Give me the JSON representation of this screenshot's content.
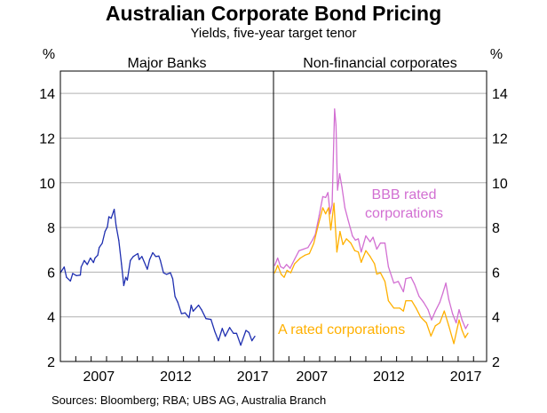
{
  "chart_data": [
    {
      "type": "line",
      "title": "Australian Corporate Bond Pricing",
      "subtitle": "Yields, five-year target tenor",
      "panel_label": "Major Banks",
      "ylabel": "%",
      "ylim": [
        2,
        15
      ],
      "yticks": [
        2,
        4,
        6,
        8,
        10,
        12,
        14
      ],
      "xlim": [
        2005,
        2018.85
      ],
      "xtick_labels": [
        "2007",
        "2012",
        "2017"
      ],
      "grid": true,
      "series": [
        {
          "name": "",
          "color": "#1f2fb0",
          "x": [
            2005.0,
            2005.25,
            2005.4,
            2005.65,
            2005.8,
            2006.05,
            2006.3,
            2006.35,
            2006.55,
            2006.75,
            2006.95,
            2007.15,
            2007.25,
            2007.43,
            2007.52,
            2007.72,
            2007.9,
            2008.05,
            2008.15,
            2008.3,
            2008.5,
            2008.62,
            2008.8,
            2008.97,
            2009.12,
            2009.25,
            2009.35,
            2009.55,
            2009.74,
            2010.03,
            2010.12,
            2010.3,
            2010.65,
            2010.8,
            2011.0,
            2011.2,
            2011.4,
            2011.5,
            2011.7,
            2011.9,
            2012.15,
            2012.3,
            2012.45,
            2012.63,
            2012.87,
            2013.1,
            2013.36,
            2013.5,
            2013.63,
            2013.98,
            2014.17,
            2014.46,
            2014.79,
            2015.04,
            2015.27,
            2015.52,
            2015.71,
            2016.0,
            2016.25,
            2016.45,
            2016.72,
            2017.06,
            2017.25,
            2017.45,
            2017.64
          ],
          "y": [
            5.97,
            6.23,
            5.77,
            5.6,
            5.94,
            5.84,
            5.87,
            6.23,
            6.52,
            6.34,
            6.63,
            6.43,
            6.63,
            6.76,
            7.1,
            7.29,
            7.82,
            8.02,
            8.48,
            8.41,
            8.81,
            8.09,
            7.42,
            6.37,
            5.4,
            5.77,
            5.64,
            6.52,
            6.7,
            6.83,
            6.56,
            6.7,
            6.13,
            6.56,
            6.87,
            6.7,
            6.72,
            6.52,
            5.97,
            5.9,
            5.97,
            5.7,
            4.91,
            4.65,
            4.14,
            4.18,
            3.96,
            4.52,
            4.25,
            4.52,
            4.32,
            3.92,
            3.88,
            3.33,
            2.93,
            3.48,
            3.13,
            3.52,
            3.26,
            3.26,
            2.73,
            3.39,
            3.3,
            2.93,
            3.13
          ]
        }
      ]
    },
    {
      "type": "line",
      "panel_label": "Non-financial corporates",
      "ylabel": "%",
      "ylim": [
        2,
        15
      ],
      "yticks": [
        2,
        4,
        6,
        8,
        10,
        12,
        14
      ],
      "xlim": [
        2005,
        2018.85
      ],
      "xtick_labels": [
        "2007",
        "2012",
        "2017"
      ],
      "grid": true,
      "series": [
        {
          "name": "BBB rated corporations",
          "color": "#d26fd2",
          "x": [
            2005.08,
            2005.27,
            2005.46,
            2005.65,
            2005.85,
            2006.08,
            2006.37,
            2006.66,
            2006.95,
            2007.24,
            2007.53,
            2007.72,
            2007.97,
            2008.2,
            2008.39,
            2008.54,
            2008.68,
            2008.81,
            2008.97,
            2009.06,
            2009.16,
            2009.3,
            2009.45,
            2009.64,
            2009.84,
            2010.13,
            2010.32,
            2010.51,
            2010.7,
            2011.0,
            2011.28,
            2011.47,
            2011.71,
            2011.95,
            2012.24,
            2012.47,
            2012.82,
            2013.11,
            2013.44,
            2013.6,
            2013.94,
            2014.17,
            2014.46,
            2014.75,
            2015.04,
            2015.27,
            2015.52,
            2015.81,
            2016.0,
            2016.2,
            2016.39,
            2016.64,
            2016.87,
            2017.06,
            2017.25,
            2017.49,
            2017.64
          ],
          "y": [
            6.3,
            6.63,
            6.24,
            6.17,
            6.34,
            6.17,
            6.57,
            6.96,
            7.03,
            7.1,
            7.43,
            7.69,
            8.55,
            9.38,
            9.34,
            9.56,
            8.61,
            9.0,
            13.3,
            12.57,
            9.67,
            10.4,
            9.8,
            8.88,
            8.35,
            7.62,
            7.43,
            7.49,
            6.9,
            7.62,
            7.36,
            7.56,
            7.03,
            7.3,
            7.3,
            6.24,
            5.51,
            5.58,
            5.12,
            5.71,
            5.77,
            5.45,
            4.92,
            4.65,
            4.32,
            3.86,
            4.26,
            4.65,
            5.05,
            5.51,
            4.78,
            4.13,
            3.73,
            4.32,
            3.86,
            3.47,
            3.66
          ]
        },
        {
          "name": "A rated corporations",
          "color": "#ffb000",
          "x": [
            2005.08,
            2005.27,
            2005.5,
            2005.69,
            2005.88,
            2006.12,
            2006.37,
            2006.75,
            2007.05,
            2007.33,
            2007.62,
            2007.9,
            2008.2,
            2008.39,
            2008.58,
            2008.72,
            2008.93,
            2009.12,
            2009.32,
            2009.51,
            2009.74,
            2010.03,
            2010.28,
            2010.51,
            2010.7,
            2011.0,
            2011.28,
            2011.57,
            2011.71,
            2011.95,
            2012.24,
            2012.47,
            2012.82,
            2013.2,
            2013.44,
            2013.6,
            2013.98,
            2014.27,
            2014.56,
            2014.94,
            2015.23,
            2015.52,
            2015.81,
            2016.1,
            2016.39,
            2016.72,
            2017.06,
            2017.25,
            2017.45,
            2017.64
          ],
          "y": [
            5.97,
            6.3,
            5.9,
            5.77,
            6.08,
            5.97,
            6.37,
            6.63,
            6.76,
            6.83,
            7.29,
            8.09,
            8.88,
            8.61,
            8.88,
            7.89,
            9.08,
            6.9,
            7.82,
            7.23,
            7.49,
            7.29,
            6.96,
            6.9,
            6.44,
            6.96,
            6.7,
            6.37,
            5.91,
            5.97,
            5.58,
            4.72,
            4.39,
            4.39,
            4.26,
            4.72,
            4.72,
            4.39,
            3.99,
            3.73,
            3.14,
            3.6,
            3.73,
            4.26,
            3.6,
            2.8,
            3.86,
            3.4,
            3.07,
            3.27
          ]
        }
      ]
    }
  ],
  "sources": "Sources:   Bloomberg; RBA; UBS AG, Australia Branch"
}
